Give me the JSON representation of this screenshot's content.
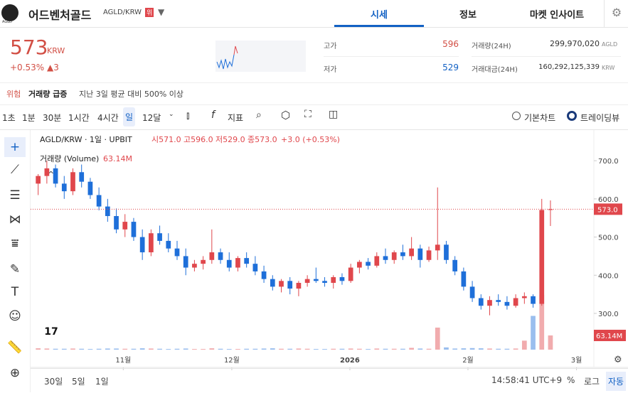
{
  "header": {
    "logo": "AGLD",
    "name": "어드벤처골드",
    "pair": "AGLD/KRW",
    "badge": "위",
    "tabs": [
      "시세",
      "정보",
      "마켓 인사이트"
    ]
  },
  "summary": {
    "price": "573",
    "unit": "KRW",
    "change_rate": "+0.53%",
    "change": "▲3"
  },
  "stats": {
    "high_label": "고가",
    "high": "596",
    "low_label": "저가",
    "low": "529",
    "volume_label": "거래량(24H)",
    "volume": "299,970,020",
    "volume_unit": "AGLD",
    "amount_label": "거래대금(24H)",
    "amount": "160,292,125,339",
    "amount_unit": "KRW"
  },
  "warning": {
    "level": "위험",
    "title": "거래량 급증",
    "text": "지난 3일 평균 대비 500% 이상"
  },
  "toolbar": {
    "intervals": [
      "1초",
      "1분",
      "30분",
      "1시간",
      "4시간",
      "일",
      "12달"
    ],
    "indicator": "지표",
    "chart_modes": [
      "기본차트",
      "트레이딩뷰"
    ]
  },
  "chart_data": {
    "type": "candlestick",
    "legend": {
      "symbol": "AGLD/KRW · 1일 · UPBIT",
      "open": "시571.0",
      "high": "고596.0",
      "low": "저529.0",
      "close": "종573.0",
      "change": "+3.0 (+0.53%)",
      "volume_title": "거래량 (Volume)",
      "volume_value": "63.14M"
    },
    "open": [
      640,
      660,
      680,
      640,
      620,
      670,
      645,
      610,
      580,
      555,
      520,
      540,
      500,
      460,
      510,
      490,
      470,
      450,
      420,
      430,
      440,
      460,
      440,
      420,
      445,
      430,
      410,
      390,
      370,
      385,
      365,
      380,
      390,
      385,
      380,
      395,
      385,
      420,
      435,
      425,
      450,
      440,
      460,
      450,
      470,
      440,
      465,
      480,
      440,
      410,
      370,
      340,
      320,
      335,
      330,
      320,
      340,
      345,
      325,
      571
    ],
    "high": [
      665,
      700,
      690,
      660,
      680,
      690,
      655,
      630,
      600,
      575,
      560,
      550,
      520,
      520,
      530,
      510,
      490,
      470,
      440,
      450,
      520,
      470,
      460,
      450,
      460,
      450,
      425,
      400,
      390,
      395,
      385,
      400,
      420,
      395,
      400,
      405,
      430,
      440,
      445,
      460,
      470,
      465,
      480,
      500,
      480,
      475,
      630,
      490,
      450,
      420,
      385,
      350,
      345,
      350,
      345,
      350,
      355,
      350,
      600,
      596
    ],
    "low": [
      610,
      640,
      630,
      600,
      610,
      630,
      600,
      570,
      540,
      510,
      500,
      490,
      440,
      450,
      480,
      460,
      440,
      400,
      410,
      415,
      430,
      430,
      410,
      410,
      420,
      400,
      380,
      360,
      355,
      350,
      345,
      370,
      380,
      370,
      365,
      375,
      380,
      405,
      415,
      420,
      430,
      430,
      440,
      440,
      420,
      435,
      440,
      430,
      400,
      360,
      330,
      310,
      295,
      320,
      310,
      315,
      325,
      315,
      320,
      529
    ],
    "close": [
      660,
      680,
      640,
      620,
      670,
      645,
      610,
      580,
      555,
      520,
      540,
      500,
      460,
      510,
      490,
      470,
      450,
      420,
      430,
      440,
      460,
      440,
      420,
      445,
      430,
      410,
      390,
      370,
      385,
      365,
      380,
      390,
      385,
      380,
      395,
      385,
      420,
      435,
      425,
      450,
      440,
      460,
      450,
      470,
      440,
      465,
      480,
      440,
      410,
      370,
      340,
      320,
      335,
      330,
      320,
      340,
      345,
      325,
      571,
      573
    ],
    "volume": [
      6,
      5,
      4,
      4,
      5,
      4,
      3,
      4,
      5,
      5,
      4,
      4,
      6,
      5,
      4,
      3,
      4,
      5,
      3,
      3,
      6,
      4,
      3,
      3,
      4,
      4,
      5,
      6,
      4,
      4,
      5,
      4,
      3,
      3,
      4,
      4,
      5,
      4,
      3,
      5,
      4,
      4,
      4,
      8,
      5,
      4,
      98,
      10,
      5,
      6,
      7,
      6,
      5,
      4,
      4,
      5,
      40,
      150,
      243,
      63.14
    ],
    "up_color": "#e0474c",
    "down_color": "#1e6fd9",
    "ylim": [
      205,
      758
    ],
    "yticks": [
      {
        "value": 700,
        "label": "700.0"
      },
      {
        "value": 600,
        "label": "600.0"
      },
      {
        "value": 500,
        "label": "500.0"
      },
      {
        "value": 400,
        "label": "400.0"
      },
      {
        "value": 300,
        "label": "300.0"
      }
    ],
    "volume_lim": [
      0,
      300
    ],
    "xlim": [
      -0.3,
      64
    ],
    "xticks": [
      {
        "value": 9.8,
        "label": "11월"
      },
      {
        "value": 22.3,
        "label": "12월"
      },
      {
        "value": 35.9,
        "label": "2026"
      },
      {
        "value": 49.5,
        "label": "2월"
      },
      {
        "value": 62,
        "label": "3월"
      }
    ],
    "price_tag": {
      "value": 573,
      "label": "573.0"
    },
    "volume_tag": {
      "value": 63.14,
      "label": "63.14M"
    }
  },
  "footer": {
    "ranges": [
      "30일",
      "5일",
      "1일"
    ],
    "time": "14:58:41 UTC+9",
    "options": [
      "%",
      "로그",
      "자동"
    ]
  }
}
